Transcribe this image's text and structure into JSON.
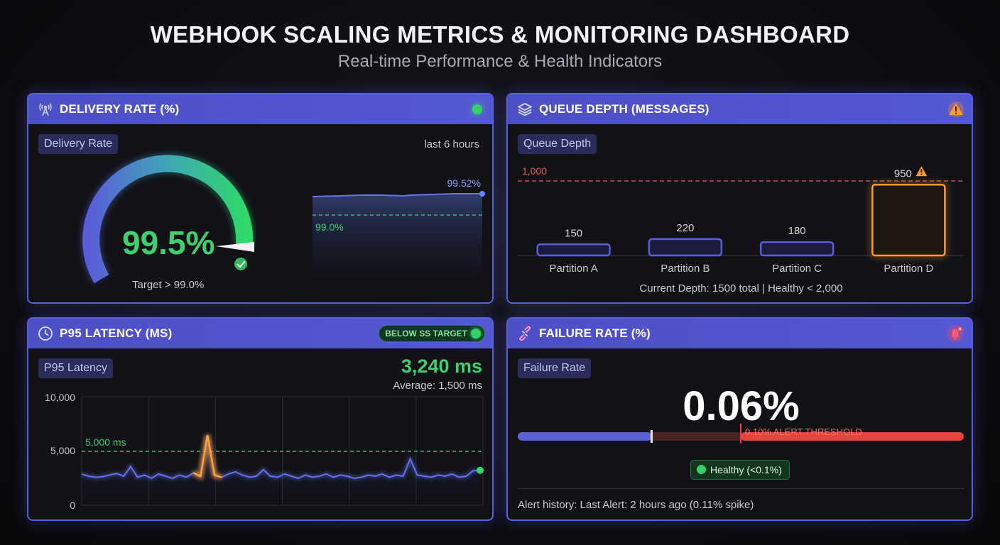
{
  "header": {
    "title": "WEBHOOK SCALING METRICS & MONITORING DASHBOARD",
    "subtitle": "Real-time Performance & Health Indicators"
  },
  "delivery": {
    "title": "DELIVERY RATE (%)",
    "chip": "Delivery Rate",
    "range_label": "last 6 hours",
    "value_label": "99.5%",
    "value": 99.5,
    "target_label": "Target > 99.0%",
    "trend_end_label": "99.52%",
    "threshold_label": "99.0%",
    "status_color": "#35d06a"
  },
  "queue": {
    "title": "QUEUE DEPTH (MESSAGES)",
    "chip": "Queue Depth",
    "summary": "Current Depth: 1500 total | Healthy < 2,000",
    "limit_label": "1,000",
    "chart_data": {
      "type": "bar",
      "categories": [
        "Partition A",
        "Partition B",
        "Partition C",
        "Partition D"
      ],
      "values": [
        150,
        220,
        180,
        950
      ],
      "value_labels": [
        "150",
        "220",
        "180",
        "950"
      ],
      "threshold": 1000,
      "ylim": [
        0,
        1000
      ],
      "title": "Queue Depth",
      "colors": {
        "normal": "#5a5fd9",
        "warning": "#ff9a2e",
        "threshold": "#e04848"
      }
    }
  },
  "latency": {
    "title": "P95 LATENCY (MS)",
    "badge": "BELOW SS TARGET",
    "chip": "P95 Latency",
    "value_label": "3,240 ms",
    "average_label": "Average: 1,500 ms",
    "chart_data": {
      "type": "line",
      "title": "P95 Latency",
      "ylim": [
        0,
        10000
      ],
      "y_ticks": [
        "10,000",
        "5,000",
        "0"
      ],
      "threshold": 5000,
      "threshold_label": "5,000 ms",
      "values": [
        2900,
        2700,
        2600,
        2650,
        2800,
        2950,
        2700,
        3600,
        2600,
        2800,
        2500,
        2900,
        2700,
        2500,
        2800,
        2600,
        3000,
        2700,
        6500,
        2800,
        2600,
        2900,
        3100,
        2800,
        2600,
        2700,
        3300,
        2700,
        2600,
        2900,
        2700,
        2500,
        2800,
        2600,
        2700,
        2900,
        2600,
        2800,
        2700,
        2500,
        2600,
        2800,
        2700,
        2900,
        2600,
        2800,
        2700,
        4300,
        2800,
        2700,
        2600,
        2800,
        2700,
        2900,
        2600,
        2700,
        3200,
        3240
      ]
    }
  },
  "failure": {
    "title": "FAILURE RATE (%)",
    "chip": "Failure Rate",
    "value_label": "0.06%",
    "value": 0.06,
    "threshold_label": "0.10% ALERT THRESHOLD",
    "healthy_label": "Healthy (<0.1%)",
    "history": "Alert history: Last Alert: 2 hours ago (0.11% spike)"
  }
}
